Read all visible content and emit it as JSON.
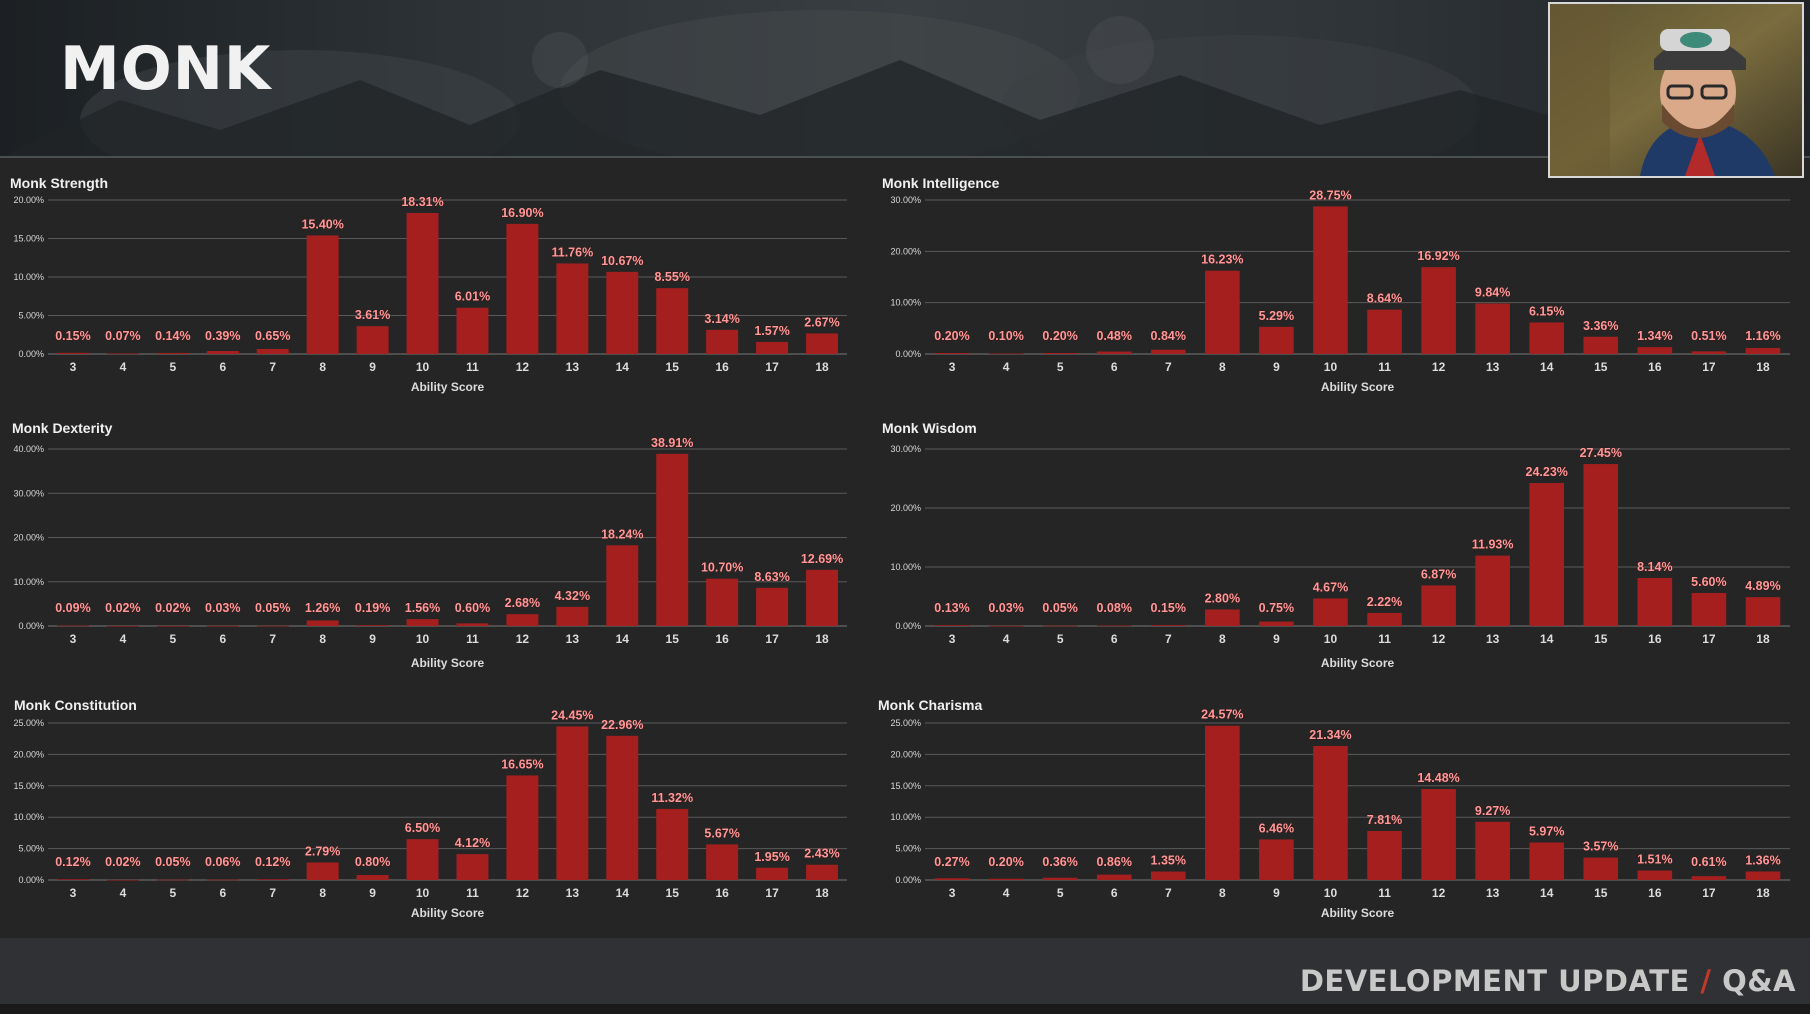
{
  "header": {
    "title": "MONK"
  },
  "footer": {
    "part1": "DEVELOPMENT UPDATE",
    "slash": "/",
    "part2": "Q&A"
  },
  "colors": {
    "bar": "#a51f1f",
    "grid": "#5a5a5a",
    "text": "#f0f0f0",
    "label": "#ff9999"
  },
  "chart_data": [
    {
      "type": "bar",
      "title": "Monk Strength",
      "xlabel": "Ability Score",
      "ylabel": "",
      "categories": [
        "3",
        "4",
        "5",
        "6",
        "7",
        "8",
        "9",
        "10",
        "11",
        "12",
        "13",
        "14",
        "15",
        "16",
        "17",
        "18"
      ],
      "values": [
        0.15,
        0.07,
        0.14,
        0.39,
        0.65,
        15.4,
        3.61,
        18.31,
        6.01,
        16.9,
        11.76,
        10.67,
        8.55,
        3.14,
        1.57,
        2.67
      ],
      "labels": [
        "0.15%",
        "0.07%",
        "0.14%",
        "0.39%",
        "0.65%",
        "15.40%",
        "3.61%",
        "18.31%",
        "6.01%",
        "16.90%",
        "11.76%",
        "10.67%",
        "8.55%",
        "3.14%",
        "1.57%",
        "2.67%"
      ],
      "ylim": [
        0,
        20
      ],
      "yticks": [
        "0.00%",
        "5.00%",
        "10.00%",
        "15.00%",
        "20.00%"
      ],
      "grid": true
    },
    {
      "type": "bar",
      "title": "Monk Intelligence",
      "xlabel": "Ability Score",
      "ylabel": "",
      "categories": [
        "3",
        "4",
        "5",
        "6",
        "7",
        "8",
        "9",
        "10",
        "11",
        "12",
        "13",
        "14",
        "15",
        "16",
        "17",
        "18"
      ],
      "values": [
        0.2,
        0.1,
        0.2,
        0.48,
        0.84,
        16.23,
        5.29,
        28.75,
        8.64,
        16.92,
        9.84,
        6.15,
        3.36,
        1.34,
        0.51,
        1.16
      ],
      "labels": [
        "0.20%",
        "0.10%",
        "0.20%",
        "0.48%",
        "0.84%",
        "16.23%",
        "5.29%",
        "28.75%",
        "8.64%",
        "16.92%",
        "9.84%",
        "6.15%",
        "3.36%",
        "1.34%",
        "0.51%",
        "1.16%"
      ],
      "ylim": [
        0,
        30
      ],
      "yticks": [
        "0.00%",
        "10.00%",
        "20.00%",
        "30.00%"
      ],
      "grid": true
    },
    {
      "type": "bar",
      "title": "Monk Dexterity",
      "xlabel": "Ability Score",
      "ylabel": "",
      "categories": [
        "3",
        "4",
        "5",
        "6",
        "7",
        "8",
        "9",
        "10",
        "11",
        "12",
        "13",
        "14",
        "15",
        "16",
        "17",
        "18"
      ],
      "values": [
        0.09,
        0.02,
        0.02,
        0.03,
        0.05,
        1.26,
        0.19,
        1.56,
        0.6,
        2.68,
        4.32,
        18.24,
        38.91,
        10.7,
        8.63,
        12.69
      ],
      "labels": [
        "0.09%",
        "0.02%",
        "0.02%",
        "0.03%",
        "0.05%",
        "1.26%",
        "0.19%",
        "1.56%",
        "0.60%",
        "2.68%",
        "4.32%",
        "18.24%",
        "38.91%",
        "10.70%",
        "8.63%",
        "12.69%"
      ],
      "ylim": [
        0,
        40
      ],
      "yticks": [
        "0.00%",
        "10.00%",
        "20.00%",
        "30.00%",
        "40.00%"
      ],
      "grid": true
    },
    {
      "type": "bar",
      "title": "Monk Wisdom",
      "xlabel": "Ability Score",
      "ylabel": "",
      "categories": [
        "3",
        "4",
        "5",
        "6",
        "7",
        "8",
        "9",
        "10",
        "11",
        "12",
        "13",
        "14",
        "15",
        "16",
        "17",
        "18"
      ],
      "values": [
        0.13,
        0.03,
        0.05,
        0.08,
        0.15,
        2.8,
        0.75,
        4.67,
        2.22,
        6.87,
        11.93,
        24.23,
        27.45,
        8.14,
        5.6,
        4.89
      ],
      "labels": [
        "0.13%",
        "0.03%",
        "0.05%",
        "0.08%",
        "0.15%",
        "2.80%",
        "0.75%",
        "4.67%",
        "2.22%",
        "6.87%",
        "11.93%",
        "24.23%",
        "27.45%",
        "8.14%",
        "5.60%",
        "4.89%"
      ],
      "ylim": [
        0,
        30
      ],
      "yticks": [
        "0.00%",
        "10.00%",
        "20.00%",
        "30.00%"
      ],
      "grid": true
    },
    {
      "type": "bar",
      "title": "Monk Constitution",
      "xlabel": "Ability Score",
      "ylabel": "",
      "categories": [
        "3",
        "4",
        "5",
        "6",
        "7",
        "8",
        "9",
        "10",
        "11",
        "12",
        "13",
        "14",
        "15",
        "16",
        "17",
        "18"
      ],
      "values": [
        0.12,
        0.02,
        0.05,
        0.06,
        0.12,
        2.79,
        0.8,
        6.5,
        4.12,
        16.65,
        24.45,
        22.96,
        11.32,
        5.67,
        1.95,
        2.43
      ],
      "labels": [
        "0.12%",
        "0.02%",
        "0.05%",
        "0.06%",
        "0.12%",
        "2.79%",
        "0.80%",
        "6.50%",
        "4.12%",
        "16.65%",
        "24.45%",
        "22.96%",
        "11.32%",
        "5.67%",
        "1.95%",
        "2.43%"
      ],
      "ylim": [
        0,
        25
      ],
      "yticks": [
        "0.00%",
        "5.00%",
        "10.00%",
        "15.00%",
        "20.00%",
        "25.00%"
      ],
      "grid": true
    },
    {
      "type": "bar",
      "title": "Monk Charisma",
      "xlabel": "Ability Score",
      "ylabel": "",
      "categories": [
        "3",
        "4",
        "5",
        "6",
        "7",
        "8",
        "9",
        "10",
        "11",
        "12",
        "13",
        "14",
        "15",
        "16",
        "17",
        "18"
      ],
      "values": [
        0.27,
        0.2,
        0.36,
        0.86,
        1.35,
        24.57,
        6.46,
        21.34,
        7.81,
        14.48,
        9.27,
        5.97,
        3.57,
        1.51,
        0.61,
        1.36
      ],
      "labels": [
        "0.27%",
        "0.20%",
        "0.36%",
        "0.86%",
        "1.35%",
        "24.57%",
        "6.46%",
        "21.34%",
        "7.81%",
        "14.48%",
        "9.27%",
        "5.97%",
        "3.57%",
        "1.51%",
        "0.61%",
        "1.36%"
      ],
      "ylim": [
        0,
        25
      ],
      "yticks": [
        "0.00%",
        "5.00%",
        "10.00%",
        "15.00%",
        "20.00%",
        "25.00%"
      ],
      "grid": true
    }
  ]
}
